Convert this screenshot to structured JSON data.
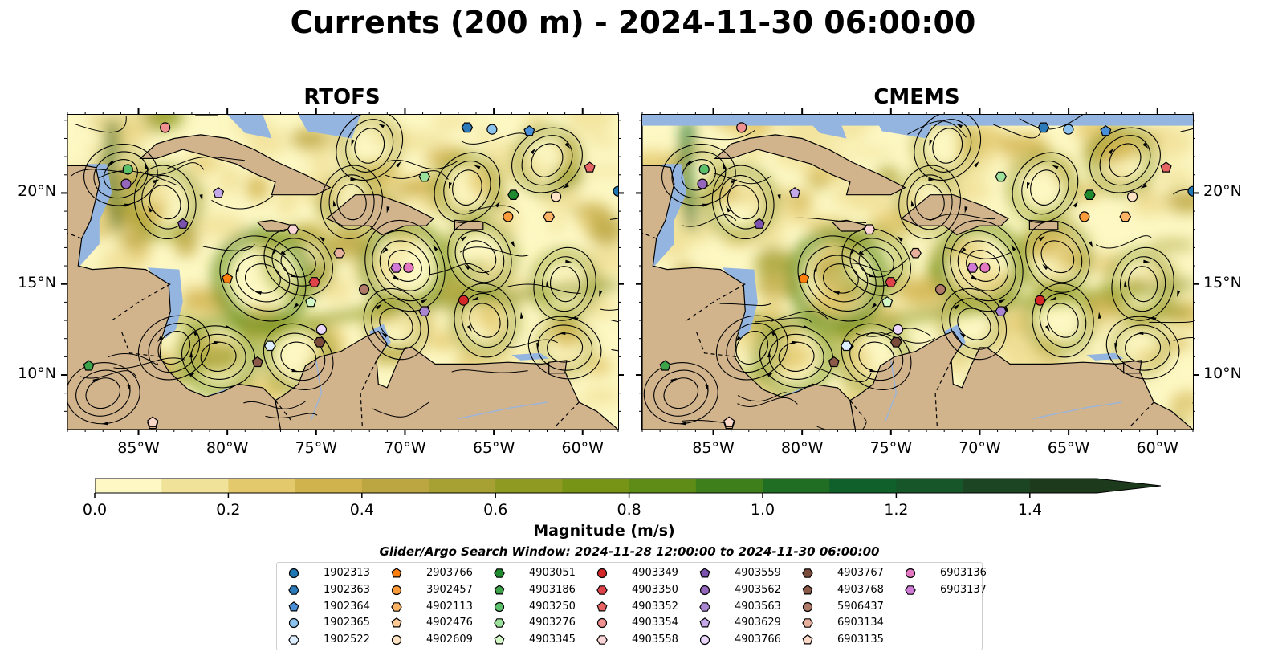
{
  "title": "Currents (200 m) - 2024-11-30 06:00:00",
  "panels": [
    {
      "title": "RTOFS"
    },
    {
      "title": "CMEMS"
    }
  ],
  "axes": {
    "x_ticks": [
      "85°W",
      "80°W",
      "75°W",
      "70°W",
      "65°W",
      "60°W"
    ],
    "y_ticks": [
      "20°N",
      "15°N",
      "10°N"
    ],
    "lon_range": [
      -89,
      -58
    ],
    "lat_range": [
      7,
      24.3
    ]
  },
  "colorbar": {
    "label": "Magnitude (m/s)",
    "ticks": [
      "0.0",
      "0.2",
      "0.4",
      "0.6",
      "0.8",
      "1.0",
      "1.2",
      "1.4"
    ],
    "range": [
      0,
      1.5
    ],
    "extend": "max",
    "colors": [
      "#fdf8c4",
      "#f1e29a",
      "#e3c86c",
      "#d1b34e",
      "#bca641",
      "#a7a033",
      "#8e9a22",
      "#789416",
      "#5e8c17",
      "#3f7f1b",
      "#1f6e24",
      "#0f602b",
      "#175628",
      "#1c4523",
      "#1d3a1c"
    ]
  },
  "colors": {
    "land": "#d2b48c",
    "shelf": "#94b5e0",
    "river": "#9db4d8",
    "streamline": "#000000"
  },
  "search_window": "Glider/Argo Search Window: 2024-11-28 12:00:00 to 2024-11-30 06:00:00",
  "legend": [
    {
      "id": "1902313",
      "marker": "circle",
      "color": "#1f77b4"
    },
    {
      "id": "1902363",
      "marker": "hexagon",
      "color": "#2b7bba"
    },
    {
      "id": "1902364",
      "marker": "pentagon",
      "color": "#4a90d9"
    },
    {
      "id": "1902365",
      "marker": "circle",
      "color": "#8cc3ee"
    },
    {
      "id": "1902522",
      "marker": "hexagon",
      "color": "#ddeeff"
    },
    {
      "id": "2903766",
      "marker": "pentagon",
      "color": "#ff7f0e"
    },
    {
      "id": "3902457",
      "marker": "circle",
      "color": "#fd9a3a"
    },
    {
      "id": "4902113",
      "marker": "hexagon",
      "color": "#fdb366"
    },
    {
      "id": "4902476",
      "marker": "pentagon",
      "color": "#fdc994"
    },
    {
      "id": "4902609",
      "marker": "circle",
      "color": "#fee2c4"
    },
    {
      "id": "4903051",
      "marker": "hexagon",
      "color": "#1f8a2e"
    },
    {
      "id": "4903186",
      "marker": "pentagon",
      "color": "#3ca34a"
    },
    {
      "id": "4903250",
      "marker": "circle",
      "color": "#5cc06a"
    },
    {
      "id": "4903276",
      "marker": "hexagon",
      "color": "#9be09b"
    },
    {
      "id": "4903345",
      "marker": "pentagon",
      "color": "#d4f7c8"
    },
    {
      "id": "4903349",
      "marker": "circle",
      "color": "#d62728"
    },
    {
      "id": "4903350",
      "marker": "hexagon",
      "color": "#e0424a"
    },
    {
      "id": "4903352",
      "marker": "pentagon",
      "color": "#e86464"
    },
    {
      "id": "4903354",
      "marker": "circle",
      "color": "#f09090"
    },
    {
      "id": "4903558",
      "marker": "hexagon",
      "color": "#fcd6d6"
    },
    {
      "id": "4903559",
      "marker": "pentagon",
      "color": "#7b52ae"
    },
    {
      "id": "4903562",
      "marker": "circle",
      "color": "#9467bd"
    },
    {
      "id": "4903563",
      "marker": "hexagon",
      "color": "#aa86d2"
    },
    {
      "id": "4903629",
      "marker": "pentagon",
      "color": "#c4a8e8"
    },
    {
      "id": "4903766",
      "marker": "circle",
      "color": "#ead7fb"
    },
    {
      "id": "4903767",
      "marker": "hexagon",
      "color": "#7a4a3a"
    },
    {
      "id": "4903768",
      "marker": "pentagon",
      "color": "#8c5a48"
    },
    {
      "id": "5906437",
      "marker": "circle",
      "color": "#b07a68"
    },
    {
      "id": "6903134",
      "marker": "hexagon",
      "color": "#e6b09c"
    },
    {
      "id": "6903135",
      "marker": "pentagon",
      "color": "#fbd8c8"
    },
    {
      "id": "6903136",
      "marker": "circle",
      "color": "#e377c2"
    },
    {
      "id": "6903137",
      "marker": "hexagon",
      "color": "#d07ad8"
    }
  ],
  "floats": [
    {
      "id": "1902313",
      "lon": -58,
      "lat": 20.1
    },
    {
      "id": "1902363",
      "lon": -66.5,
      "lat": 23.6
    },
    {
      "id": "1902364",
      "lon": -63,
      "lat": 23.4
    },
    {
      "id": "1902365",
      "lon": -65.1,
      "lat": 23.5
    },
    {
      "id": "1902522",
      "lon": -77.6,
      "lat": 11.6
    },
    {
      "id": "2903766",
      "lon": -80,
      "lat": 15.3
    },
    {
      "id": "3902457",
      "lon": -64.2,
      "lat": 18.7
    },
    {
      "id": "4902113",
      "lon": -61.9,
      "lat": 18.7
    },
    {
      "id": "4902476",
      "lon": -84.2,
      "lat": 7.3
    },
    {
      "id": "4902609",
      "lon": -61.5,
      "lat": 19.8
    },
    {
      "id": "4903051",
      "lon": -63.9,
      "lat": 19.9
    },
    {
      "id": "4903186",
      "lon": -87.8,
      "lat": 10.5
    },
    {
      "id": "4903250",
      "lon": -85.6,
      "lat": 21.3
    },
    {
      "id": "4903276",
      "lon": -68.9,
      "lat": 20.9
    },
    {
      "id": "4903345",
      "lon": -75.3,
      "lat": 14.0
    },
    {
      "id": "4903349",
      "lon": -66.7,
      "lat": 14.1
    },
    {
      "id": "4903350",
      "lon": -75.1,
      "lat": 15.1
    },
    {
      "id": "4903352",
      "lon": -59.6,
      "lat": 21.4
    },
    {
      "id": "4903354",
      "lon": -83.5,
      "lat": 23.6
    },
    {
      "id": "4903558",
      "lon": -76.3,
      "lat": 18.0
    },
    {
      "id": "4903559",
      "lon": -82.5,
      "lat": 18.3
    },
    {
      "id": "4903562",
      "lon": -85.7,
      "lat": 20.5
    },
    {
      "id": "4903563",
      "lon": -68.9,
      "lat": 13.5
    },
    {
      "id": "4903629",
      "lon": -80.5,
      "lat": 20.0
    },
    {
      "id": "4903766",
      "lon": -74.7,
      "lat": 12.5
    },
    {
      "id": "4903767",
      "lon": -74.8,
      "lat": 11.8
    },
    {
      "id": "4903768",
      "lon": -78.3,
      "lat": 10.7
    },
    {
      "id": "5906437",
      "lon": -72.3,
      "lat": 14.7
    },
    {
      "id": "6903134",
      "lon": -73.7,
      "lat": 16.7
    },
    {
      "id": "6903135",
      "lon": -84.2,
      "lat": 7.4
    },
    {
      "id": "6903136",
      "lon": -69.8,
      "lat": 15.9
    },
    {
      "id": "6903137",
      "lon": -70.5,
      "lat": 15.9
    }
  ]
}
